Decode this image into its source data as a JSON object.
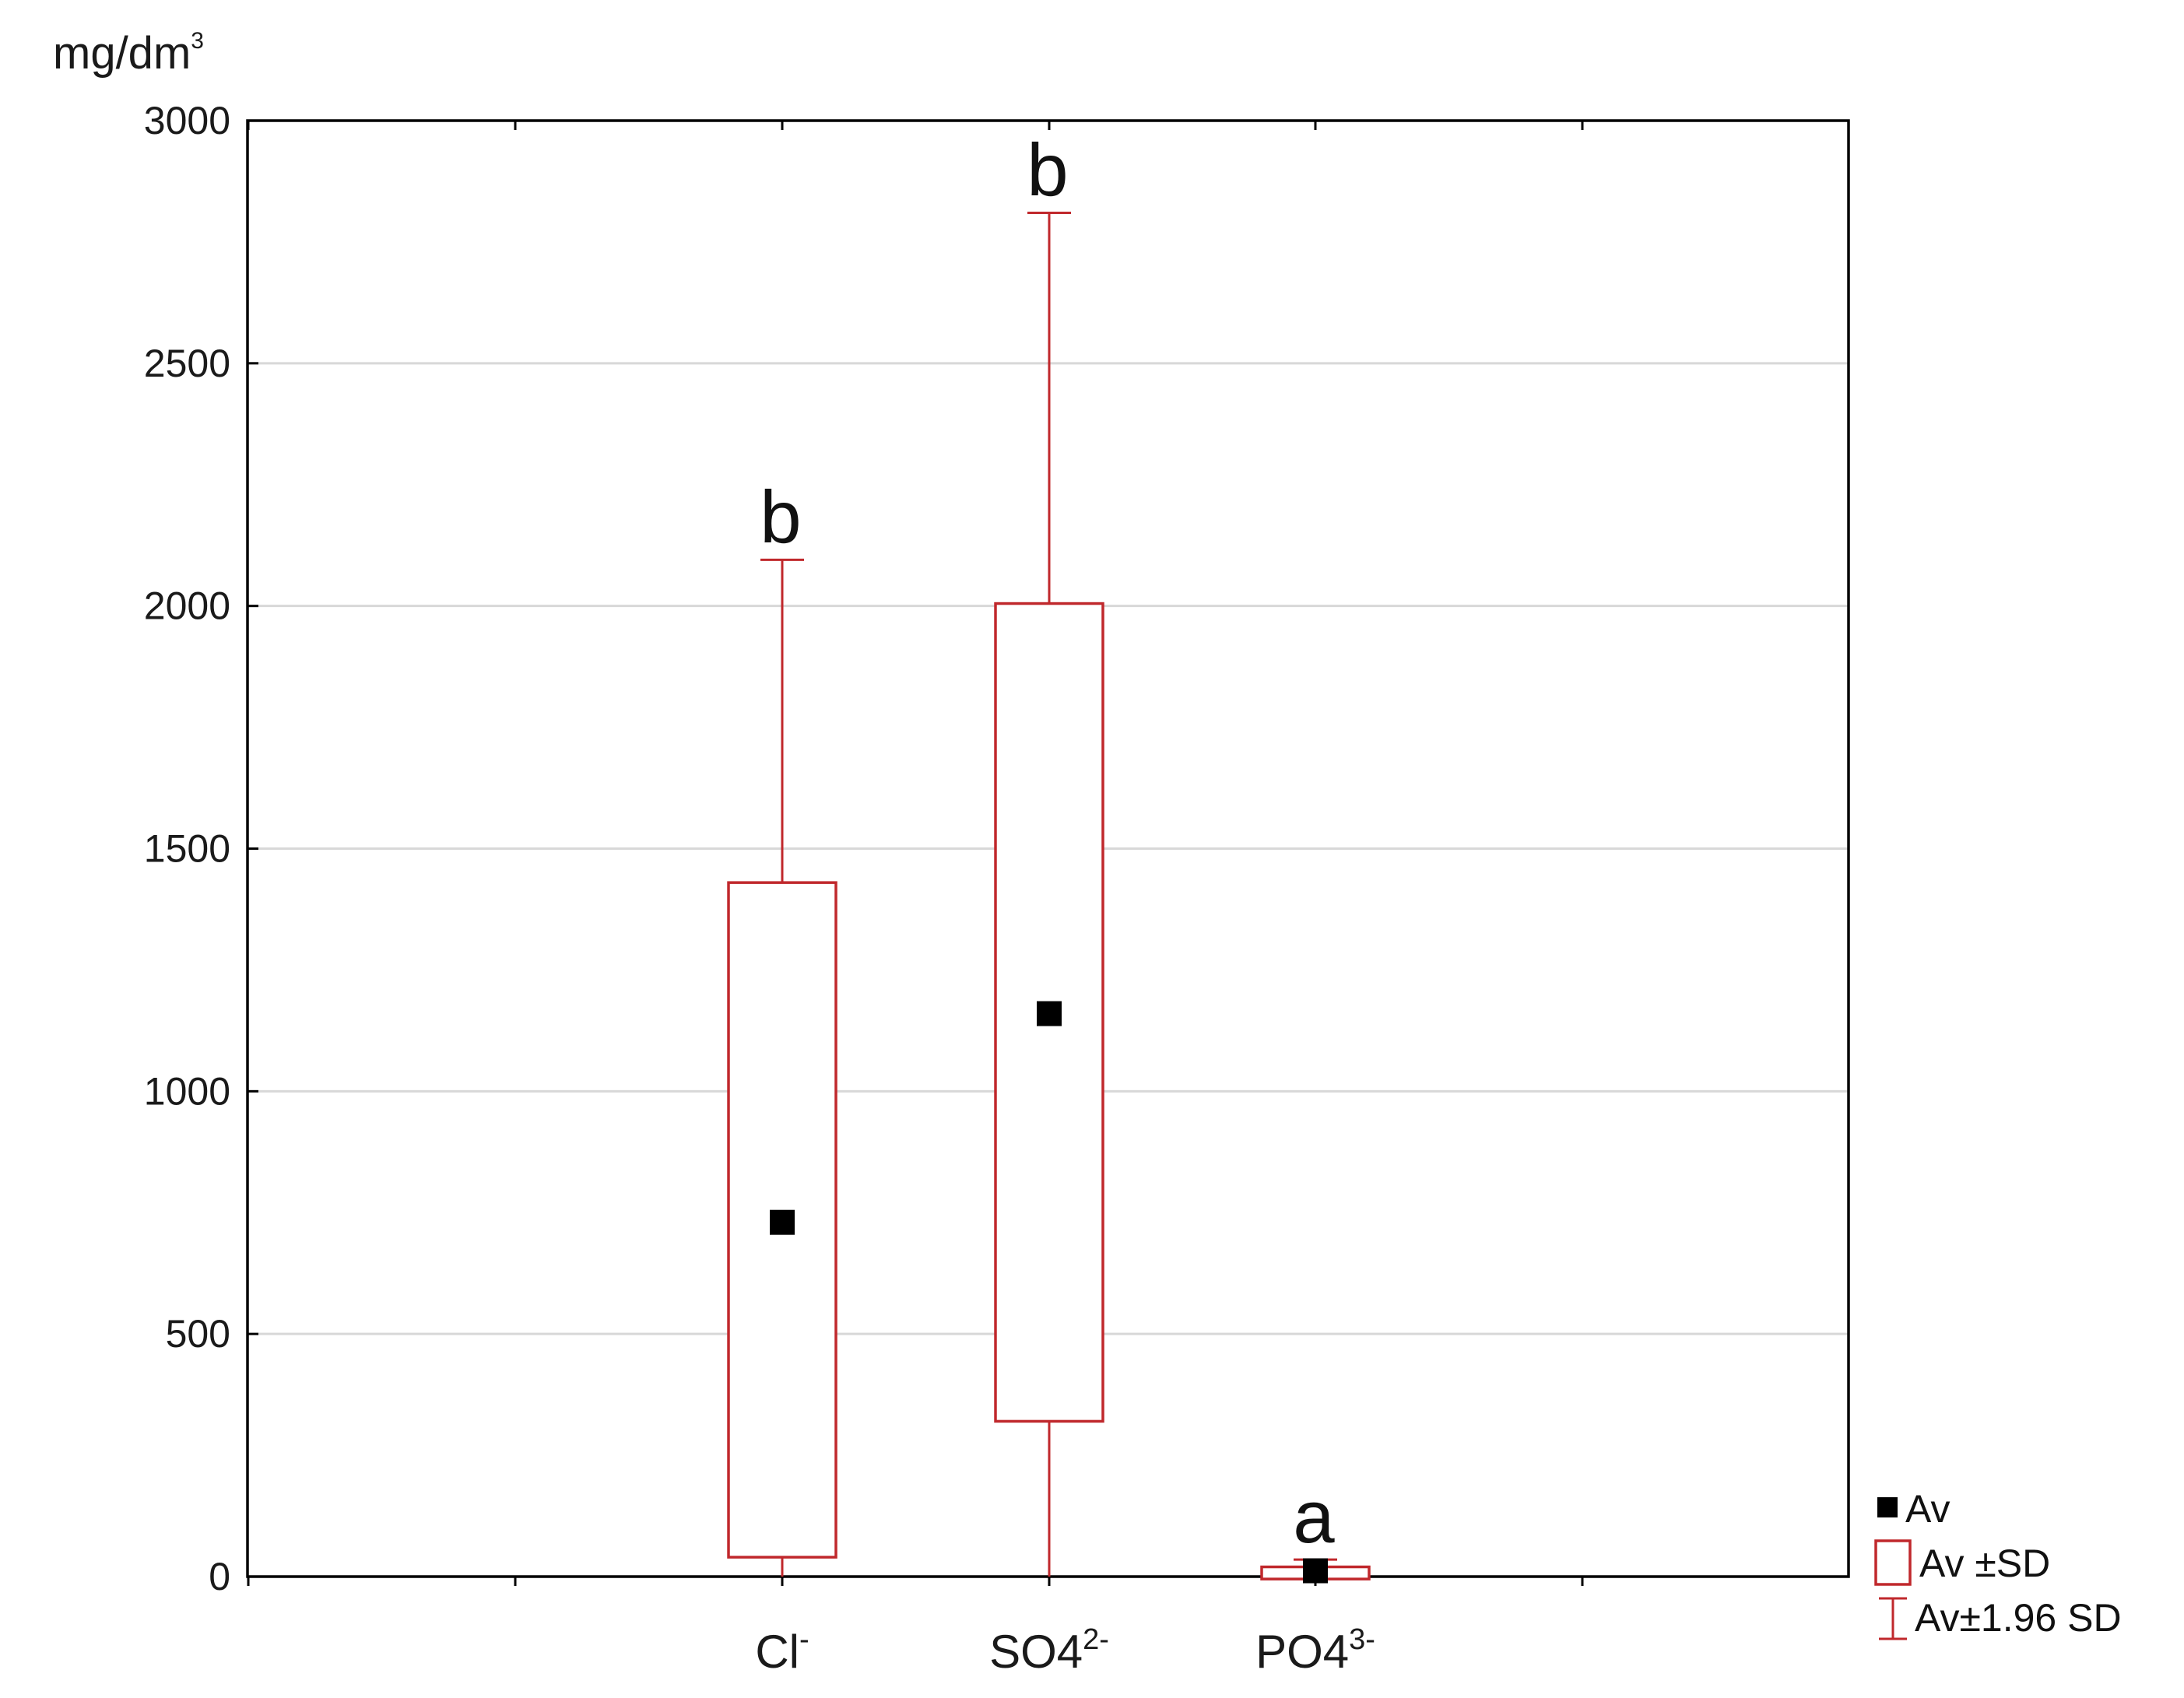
{
  "chart_data": {
    "type": "box",
    "ylabel": "mg/dm",
    "ylabel_superscript": "3",
    "ylim": [
      0,
      3000
    ],
    "yticks": [
      "0",
      "500",
      "1000",
      "1500",
      "2000",
      "2500",
      "3000"
    ],
    "grid": true,
    "categories": [
      {
        "base": "Cl",
        "sub": "",
        "sup": "-"
      },
      {
        "base": "SO",
        "sub": "4",
        "sup": "2-"
      },
      {
        "base": "PO",
        "sub": "4",
        "sup": "3-"
      }
    ],
    "series": [
      {
        "category": "Cl-",
        "mean": 730,
        "sd_low": 40,
        "sd_high": 1430,
        "ci_low": -20,
        "ci_high": 2095,
        "letter": "b"
      },
      {
        "category": "SO42-",
        "mean": 1160,
        "sd_low": 320,
        "sd_high": 2005,
        "ci_low": -20,
        "ci_high": 2810,
        "letter": "b"
      },
      {
        "category": "PO43-",
        "mean": 12,
        "sd_low": -5,
        "sd_high": 20,
        "ci_low": -10,
        "ci_high": 35,
        "letter": "a"
      }
    ],
    "legend": {
      "position": "right",
      "items": [
        "Av",
        "Av ±SD",
        "Av±1.96 SD"
      ]
    },
    "colors": {
      "box": "#c0282c",
      "mean": "#000000",
      "grid": "#d8d8d8",
      "axis": "#000000"
    }
  }
}
